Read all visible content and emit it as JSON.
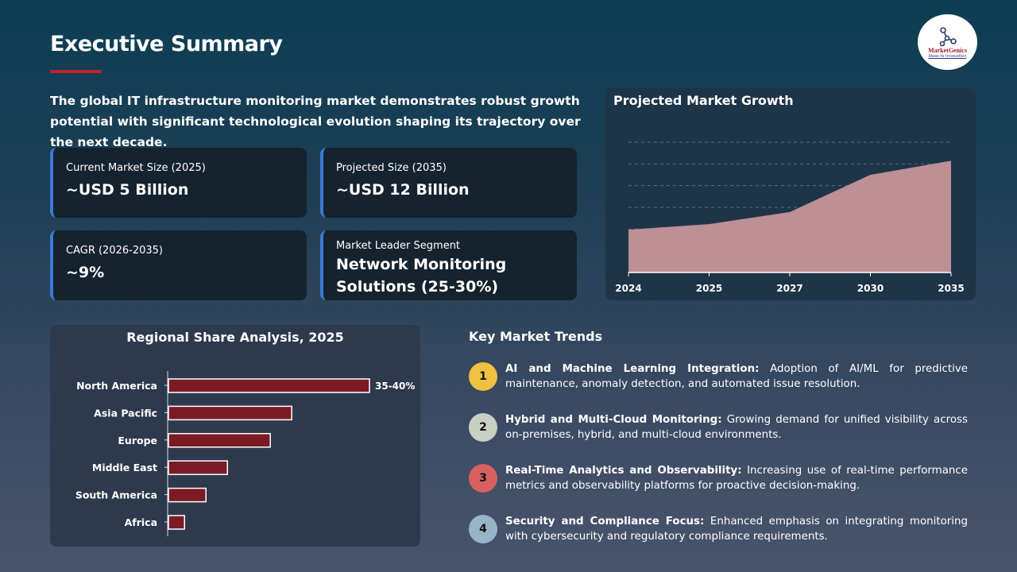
{
  "header": {
    "title": "Executive Summary",
    "logo_text": "MarketGenics",
    "logo_tagline": "Ideas to Innovation"
  },
  "intro": "The global IT infrastructure monitoring market demonstrates robust growth potential with significant technological evolution shaping its trajectory over the next decade.",
  "cards": [
    {
      "label": "Current Market Size (2025)",
      "value": "~USD 5 Billion"
    },
    {
      "label": "Projected Size (2035)",
      "value": "~USD 12 Billion"
    },
    {
      "label": "CAGR (2026-2035)",
      "value": "~9%"
    },
    {
      "label": "Market Leader Segment",
      "value": "Network Monitoring Solutions (25-30%)"
    }
  ],
  "colors": {
    "accent": "#c0202a",
    "card_border": "#3a7bd5",
    "area_fill": "#bc9095",
    "bar_fill": "#7a1a24"
  },
  "chart_data": [
    {
      "type": "area",
      "title": "Projected Market Growth",
      "categories": [
        "2024",
        "2025",
        "2027",
        "2030",
        "2035"
      ],
      "values": [
        4.6,
        5.2,
        6.5,
        10.5,
        12
      ],
      "ylim": [
        0,
        14
      ],
      "grid": true,
      "xlabel": "",
      "ylabel": ""
    },
    {
      "type": "bar",
      "orientation": "horizontal",
      "title": "Regional Share Analysis, 2025",
      "categories": [
        "North America",
        "Asia Pacific",
        "Europe",
        "Middle East",
        "South America",
        "Africa"
      ],
      "values": [
        37.5,
        23,
        19,
        11,
        7,
        3
      ],
      "data_labels": [
        "35-40%",
        "",
        "",
        "",
        "",
        ""
      ],
      "xlim": [
        0,
        37.5
      ],
      "grid": false
    }
  ],
  "trends": {
    "title": "Key Market Trends",
    "items": [
      {
        "num": "1",
        "color": "#f0c040",
        "title": "AI and Machine Learning Integration:",
        "text": " Adoption of AI/ML for predictive maintenance, anomaly detection, and automated issue resolution."
      },
      {
        "num": "2",
        "color": "#c8d0c4",
        "title": "Hybrid and Multi-Cloud Monitoring:",
        "text": " Growing demand for unified visibility across on-premises, hybrid, and multi-cloud environments."
      },
      {
        "num": "3",
        "color": "#d86060",
        "title": "Real-Time Analytics and Observability:",
        "text": " Increasing use of real-time performance metrics and observability platforms for proactive decision-making."
      },
      {
        "num": "4",
        "color": "#98b4c8",
        "title": "Security and Compliance Focus:",
        "text": " Enhanced emphasis on integrating monitoring with cybersecurity and regulatory compliance requirements."
      }
    ]
  }
}
